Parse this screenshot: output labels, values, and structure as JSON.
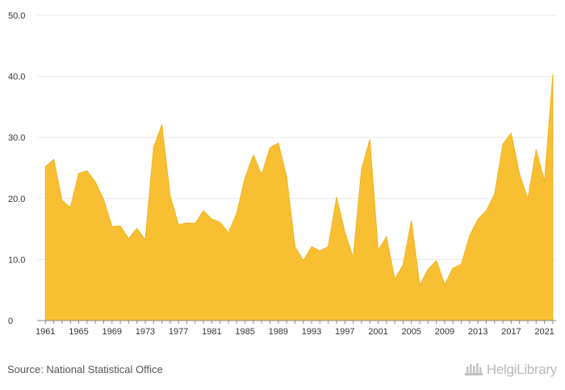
{
  "chart_data": {
    "type": "area",
    "x": [
      1961,
      1962,
      1963,
      1964,
      1965,
      1966,
      1967,
      1968,
      1969,
      1970,
      1971,
      1972,
      1973,
      1974,
      1975,
      1976,
      1977,
      1978,
      1979,
      1980,
      1981,
      1982,
      1983,
      1984,
      1985,
      1986,
      1987,
      1988,
      1989,
      1990,
      1991,
      1992,
      1993,
      1994,
      1995,
      1996,
      1997,
      1998,
      1999,
      2000,
      2001,
      2002,
      2003,
      2004,
      2005,
      2006,
      2007,
      2008,
      2009,
      2010,
      2011,
      2012,
      2013,
      2014,
      2015,
      2016,
      2017,
      2018,
      2019,
      2020,
      2021,
      2022
    ],
    "series": [
      {
        "values": [
          25.2,
          26.4,
          19.7,
          18.5,
          24.1,
          24.5,
          22.7,
          19.8,
          15.4,
          15.5,
          13.4,
          15.1,
          13.2,
          28.3,
          32.1,
          20.4,
          15.7,
          16.0,
          15.9,
          18.0,
          16.6,
          16.1,
          14.4,
          17.6,
          23.4,
          27.1,
          23.9,
          28.3,
          29.1,
          23.5,
          12.1,
          9.8,
          12.1,
          11.4,
          12.1,
          20.2,
          14.5,
          10.3,
          24.7,
          29.7,
          11.5,
          13.7,
          6.8,
          9.1,
          16.4,
          5.8,
          8.4,
          9.8,
          5.9,
          8.6,
          9.2,
          13.9,
          16.6,
          18.0,
          20.7,
          28.9,
          30.7,
          24.0,
          19.9,
          28.0,
          22.8,
          40.3
        ]
      }
    ],
    "x_tick_labels": [
      "1961",
      "1965",
      "1969",
      "1973",
      "1977",
      "1981",
      "1985",
      "1989",
      "1993",
      "1997",
      "2001",
      "2005",
      "2009",
      "2013",
      "2017",
      "2021"
    ],
    "y_tick_labels": [
      "0",
      "10.0",
      "20.0",
      "30.0",
      "40.0",
      "50.0"
    ],
    "ylim": [
      0,
      50
    ],
    "xlim": [
      1960,
      2022.4
    ],
    "grid": true,
    "colors": {
      "fill": "#F9BF33",
      "stroke": "#F2B21B",
      "grid": "#e8e8e8",
      "axis": "#888888"
    }
  },
  "footer": {
    "source": "Source: National Statistical Office",
    "brand": "HelgiLibrary",
    "brand_icon": "helgi-library-logo-icon"
  }
}
